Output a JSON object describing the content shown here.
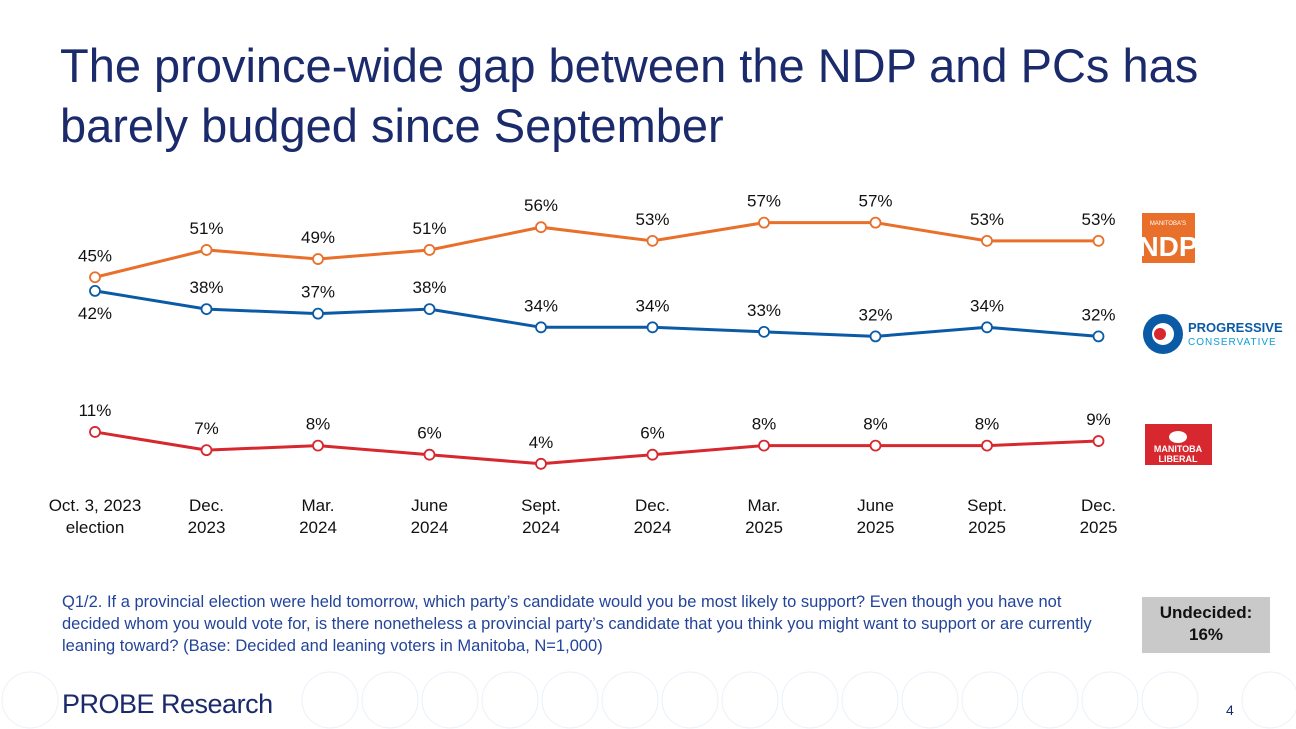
{
  "chart_data": {
    "type": "line",
    "title": "The province-wide gap between the NDP and PCs has barely budged since September",
    "categories": [
      "Oct. 3, 2023\nelection",
      "Dec.\n2023",
      "Mar.\n2024",
      "June\n2024",
      "Sept.\n2024",
      "Dec.\n2024",
      "Mar.\n2025",
      "June\n2025",
      "Sept.\n2025",
      "Dec.\n2025"
    ],
    "series": [
      {
        "name": "NDP",
        "color": "#e8702a",
        "values": [
          45,
          51,
          49,
          51,
          56,
          53,
          57,
          57,
          53,
          53
        ],
        "value_labels": [
          "45%",
          "51%",
          "49%",
          "51%",
          "56%",
          "53%",
          "57%",
          "57%",
          "53%",
          "53%"
        ]
      },
      {
        "name": "PROGRESSIVE",
        "color": "#0b5aa6",
        "values": [
          42,
          38,
          37,
          38,
          34,
          34,
          33,
          32,
          34,
          32
        ],
        "value_labels": [
          "42%",
          "38%",
          "37%",
          "38%",
          "34%",
          "34%",
          "33%",
          "32%",
          "34%",
          "32%"
        ]
      },
      {
        "name": "LIBERAL",
        "color": "#d6282e",
        "values": [
          11,
          7,
          8,
          6,
          4,
          6,
          8,
          8,
          8,
          9
        ],
        "value_labels": [
          "11%",
          "7%",
          "8%",
          "6%",
          "4%",
          "6%",
          "8%",
          "8%",
          "8%",
          "9%"
        ]
      }
    ],
    "logos": {
      "ndp_top": "MANITOBA'S",
      "pc_sub": "CONSERVATIVE",
      "liberal_top": "MANITOBA"
    }
  },
  "footer": {
    "question": "Q1/2. If a provincial election were held tomorrow, which party’s candidate would you be most likely to support? Even though you have not decided whom you would vote for, is there nonetheless a provincial party’s candidate that you think you might want to support or are currently leaning toward? (Base: Decided and leaning voters in Manitoba, N=1,000)",
    "undecided_label": "Undecided:",
    "undecided_value": "16%",
    "brand": "PROBE Research",
    "page": "4"
  }
}
